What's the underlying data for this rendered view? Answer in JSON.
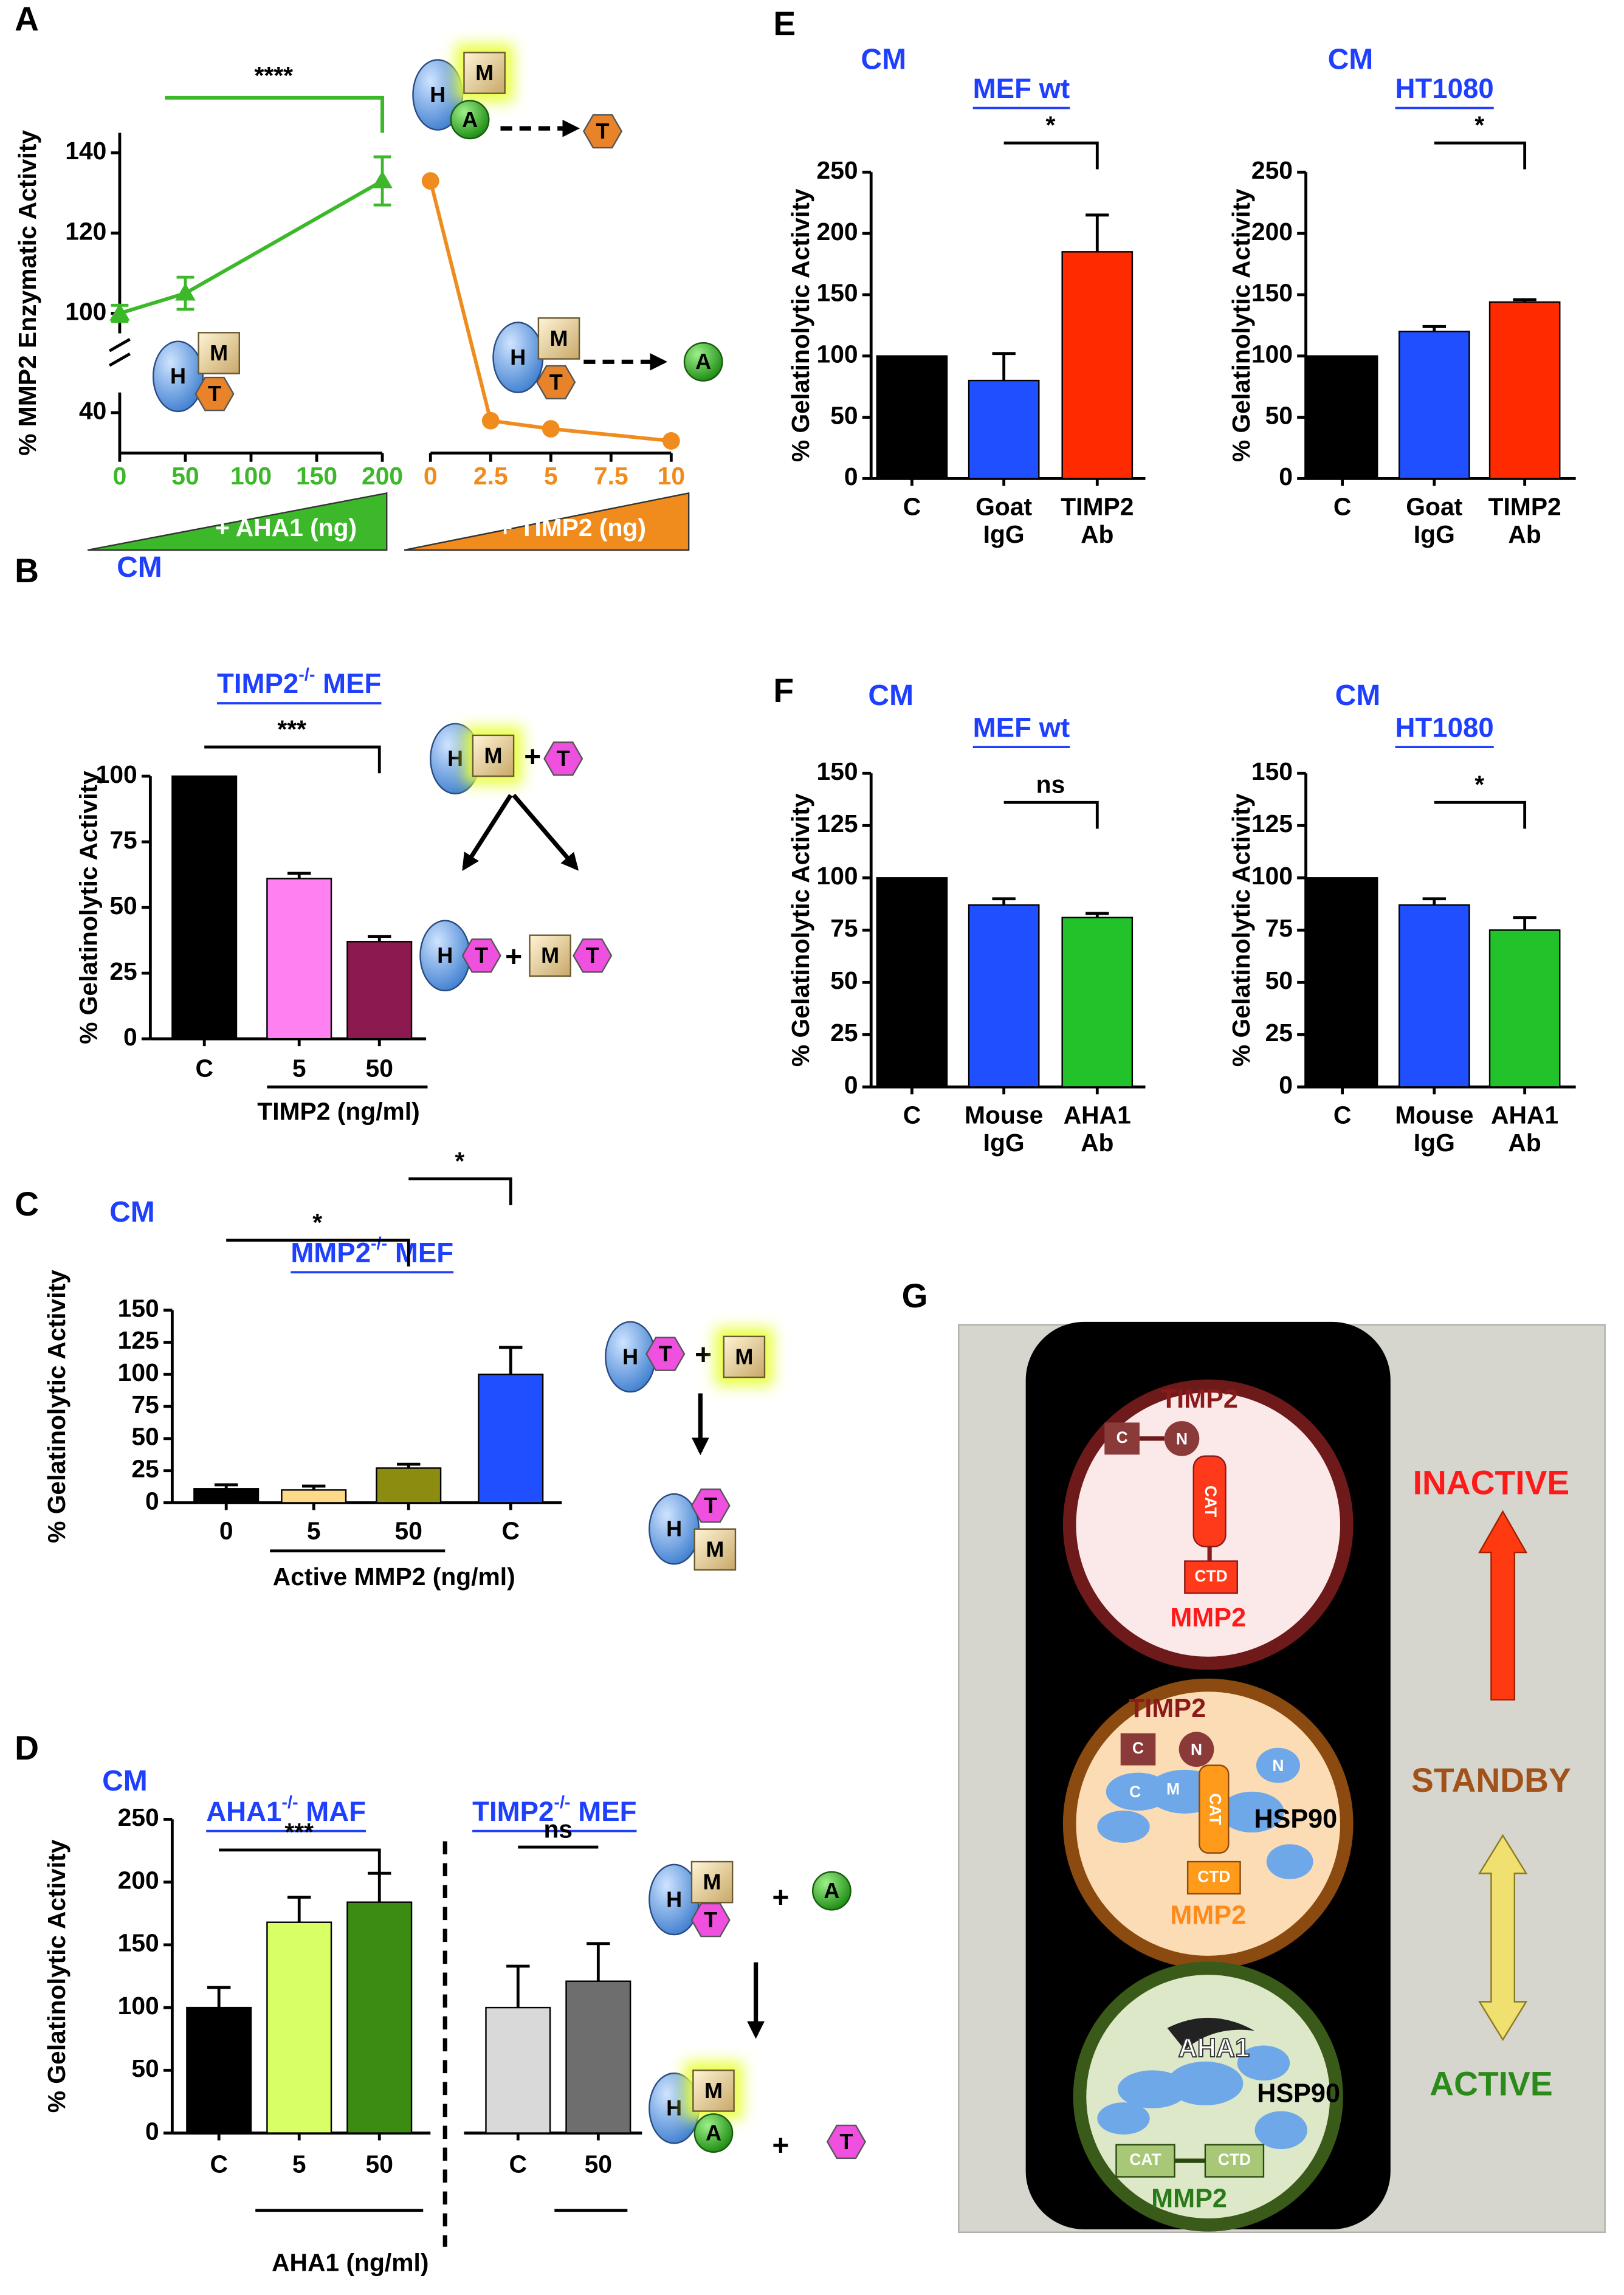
{
  "panels": {
    "a": "A",
    "b": "B",
    "c": "C",
    "d": "D",
    "e": "E",
    "f": "F",
    "g": "G"
  },
  "glyphs": {
    "hsp90": "H",
    "mmp2": "M",
    "aha1": "A",
    "timp2": "T",
    "plus": "+"
  },
  "chart_data": [
    {
      "type": "line",
      "ylabel": "% MMP2 Enzymatic Activity",
      "ylim": [
        30,
        145
      ],
      "ybreak": [
        45,
        95
      ],
      "yticks": [
        40,
        100,
        120,
        140
      ],
      "significance": [
        {
          "label": "****"
        }
      ],
      "subplots": [
        {
          "xlabel": "+ AHA1 (ng)",
          "color": "#3cb82a",
          "marker": "triangle",
          "x": [
            0,
            50,
            200
          ],
          "values": [
            100,
            105,
            133
          ],
          "errors": [
            2,
            4,
            6
          ],
          "xlim": [
            0,
            200
          ],
          "xticks": [
            0,
            50,
            100,
            150,
            200
          ]
        },
        {
          "xlabel": "+ TIMP2 (ng)",
          "color": "#f08c1e",
          "marker": "circle",
          "x": [
            0,
            2.5,
            5,
            10
          ],
          "values": [
            133,
            38,
            36,
            33
          ],
          "errors": [
            null,
            null,
            null,
            null
          ],
          "xlim": [
            0,
            10
          ],
          "xticks": [
            0,
            2.5,
            5,
            7.5,
            10
          ]
        }
      ]
    },
    {
      "type": "bar",
      "context": "CM",
      "title_parts": [
        "TIMP2",
        "-/-",
        " MEF"
      ],
      "ylabel": "% Gelatinolytic Activity",
      "categories": [
        "C",
        "5",
        "50"
      ],
      "values": [
        100,
        61,
        37
      ],
      "errors": [
        null,
        2,
        2
      ],
      "colors": [
        "#000000",
        "#ff80f0",
        "#8c1a50"
      ],
      "ylim": [
        0,
        100
      ],
      "yticks": [
        0,
        25,
        50,
        75,
        100
      ],
      "group_label": "TIMP2 (ng/ml)",
      "significance": [
        {
          "label": "***",
          "between": [
            "C",
            "50"
          ]
        }
      ]
    },
    {
      "type": "bar",
      "context": "CM",
      "title_parts": [
        "MMP2",
        "-/-",
        " MEF"
      ],
      "ylabel": "% Gelatinolytic Activity",
      "categories": [
        "0",
        "5",
        "50",
        "C"
      ],
      "values": [
        11,
        10,
        27,
        100
      ],
      "errors": [
        3,
        3,
        3,
        21
      ],
      "colors": [
        "#000000",
        "#ffd98a",
        "#8c8c10",
        "#1f4fff"
      ],
      "ylim": [
        0,
        150
      ],
      "yticks": [
        0,
        25,
        50,
        75,
        100,
        125,
        150
      ],
      "group_label": "Active MMP2 (ng/ml)",
      "significance": [
        {
          "label": "*",
          "between": [
            "0",
            "50"
          ]
        },
        {
          "label": "*",
          "between": [
            "50",
            "C"
          ]
        }
      ]
    },
    {
      "type": "bar",
      "context": "CM",
      "title_parts": [
        "AHA1",
        "-/-",
        " MAF"
      ],
      "ylabel": "% Gelatinolytic Activity",
      "categories": [
        "C",
        "5",
        "50"
      ],
      "values": [
        100,
        168,
        184
      ],
      "errors": [
        16,
        20,
        23
      ],
      "colors": [
        "#000000",
        "#d9ff66",
        "#3c8c14"
      ],
      "ylim": [
        0,
        250
      ],
      "yticks": [
        0,
        50,
        100,
        150,
        200,
        250
      ],
      "group_label": "AHA1 (ng/ml)",
      "significance": [
        {
          "label": "***",
          "between": [
            "C",
            "50"
          ]
        }
      ]
    },
    {
      "type": "bar",
      "title_parts": [
        "TIMP2",
        "-/-",
        " MEF"
      ],
      "categories": [
        "C",
        "50"
      ],
      "values": [
        100,
        121
      ],
      "errors": [
        33,
        30
      ],
      "colors": [
        "#d9d9d9",
        "#6e6e6e"
      ],
      "ylim": [
        0,
        250
      ],
      "significance": [
        {
          "label": "ns",
          "between": [
            "C",
            "50"
          ]
        }
      ]
    },
    {
      "type": "bar",
      "context": "CM",
      "title_parts": [
        "MEF wt"
      ],
      "ylabel": "% Gelatinolytic Activity",
      "categories": [
        "C",
        "Goat IgG",
        "TIMP2 Ab"
      ],
      "values": [
        100,
        80,
        185
      ],
      "errors": [
        null,
        22,
        30
      ],
      "colors": [
        "#000000",
        "#1f4fff",
        "#ff2a00"
      ],
      "ylim": [
        0,
        250
      ],
      "yticks": [
        0,
        50,
        100,
        150,
        200,
        250
      ],
      "significance": [
        {
          "label": "*",
          "between": [
            "Goat IgG",
            "TIMP2 Ab"
          ]
        }
      ]
    },
    {
      "type": "bar",
      "context": "CM",
      "title_parts": [
        "HT1080"
      ],
      "ylabel": "% Gelatinolytic Activity",
      "categories": [
        "C",
        "Goat IgG",
        "TIMP2 Ab"
      ],
      "values": [
        100,
        120,
        144
      ],
      "errors": [
        null,
        4,
        2
      ],
      "colors": [
        "#000000",
        "#1f4fff",
        "#ff2a00"
      ],
      "ylim": [
        0,
        250
      ],
      "yticks": [
        0,
        50,
        100,
        150,
        200,
        250
      ],
      "significance": [
        {
          "label": "*",
          "between": [
            "Goat IgG",
            "TIMP2 Ab"
          ]
        }
      ]
    },
    {
      "type": "bar",
      "context": "CM",
      "title_parts": [
        "MEF wt"
      ],
      "ylabel": "% Gelatinolytic Activity",
      "categories": [
        "C",
        "Mouse IgG",
        "AHA1 Ab"
      ],
      "values": [
        100,
        87,
        81
      ],
      "errors": [
        null,
        3,
        2
      ],
      "colors": [
        "#000000",
        "#1f4fff",
        "#22c32a"
      ],
      "ylim": [
        0,
        150
      ],
      "yticks": [
        0,
        25,
        50,
        75,
        100,
        125,
        150
      ],
      "significance": [
        {
          "label": "ns",
          "between": [
            "Mouse IgG",
            "AHA1 Ab"
          ]
        }
      ]
    },
    {
      "type": "bar",
      "context": "CM",
      "title_parts": [
        "HT1080"
      ],
      "ylabel": "% Gelatinolytic Activity",
      "categories": [
        "C",
        "Mouse IgG",
        "AHA1 Ab"
      ],
      "values": [
        100,
        87,
        75
      ],
      "errors": [
        null,
        3,
        6
      ],
      "colors": [
        "#000000",
        "#1f4fff",
        "#22c32a"
      ],
      "ylim": [
        0,
        150
      ],
      "yticks": [
        0,
        25,
        50,
        75,
        100,
        125,
        150
      ],
      "significance": [
        {
          "label": "*",
          "between": [
            "Mouse IgG",
            "AHA1 Ab"
          ]
        }
      ]
    }
  ],
  "panel_g": {
    "inactive": {
      "state": "INACTIVE",
      "timp2": "TIMP2",
      "c": "C",
      "n": "N",
      "cat": "CAT",
      "ctd": "CTD",
      "mmp2": "MMP2"
    },
    "standby": {
      "state": "STANDBY",
      "timp2": "TIMP2",
      "c": "C",
      "n": "N",
      "hsp_n": "N",
      "hsp_c": "C",
      "hsp_m": "M",
      "cat": "CAT",
      "hsp90": "HSP90",
      "ctd": "CTD",
      "mmp2": "MMP2"
    },
    "active": {
      "state": "ACTIVE",
      "aha1": "AHA1",
      "hsp90": "HSP90",
      "cat": "CAT",
      "ctd": "CTD",
      "mmp2": "MMP2"
    }
  }
}
